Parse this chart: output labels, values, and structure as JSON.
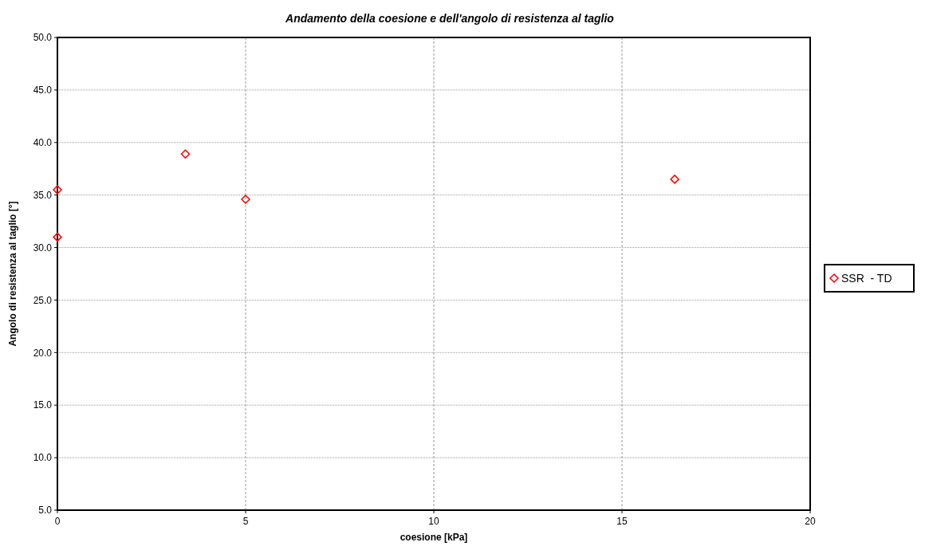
{
  "chart_data": {
    "type": "scatter",
    "title": "Andamento della coesione e dell'angolo di resistenza al taglio",
    "xlabel": "coesione [kPa]",
    "ylabel": "Angolo di resistenza al taglio [°]",
    "x": [
      0,
      0,
      3.4,
      5.0,
      16.4
    ],
    "series": [
      {
        "name": "SSR  - TD",
        "color": "#ff0000",
        "values": [
          35.5,
          31.0,
          38.9,
          34.6,
          36.5
        ]
      }
    ],
    "xlim": [
      0,
      20
    ],
    "xticks": [
      0,
      5,
      10,
      15,
      20
    ],
    "ylim": [
      5,
      50
    ],
    "yticks": [
      {
        "value": 5,
        "label": "5.0"
      },
      {
        "value": 10,
        "label": "10.0"
      },
      {
        "value": 15,
        "label": "15.0"
      },
      {
        "value": 20,
        "label": "20.0"
      },
      {
        "value": 25,
        "label": "25.0"
      },
      {
        "value": 30,
        "label": "30.0"
      },
      {
        "value": 35,
        "label": "35.0"
      },
      {
        "value": 40,
        "label": "40.0"
      },
      {
        "value": 45,
        "label": "45.0"
      },
      {
        "value": 50,
        "label": "50.0"
      }
    ],
    "grid": true,
    "legend": "right",
    "marker": "diamond"
  }
}
